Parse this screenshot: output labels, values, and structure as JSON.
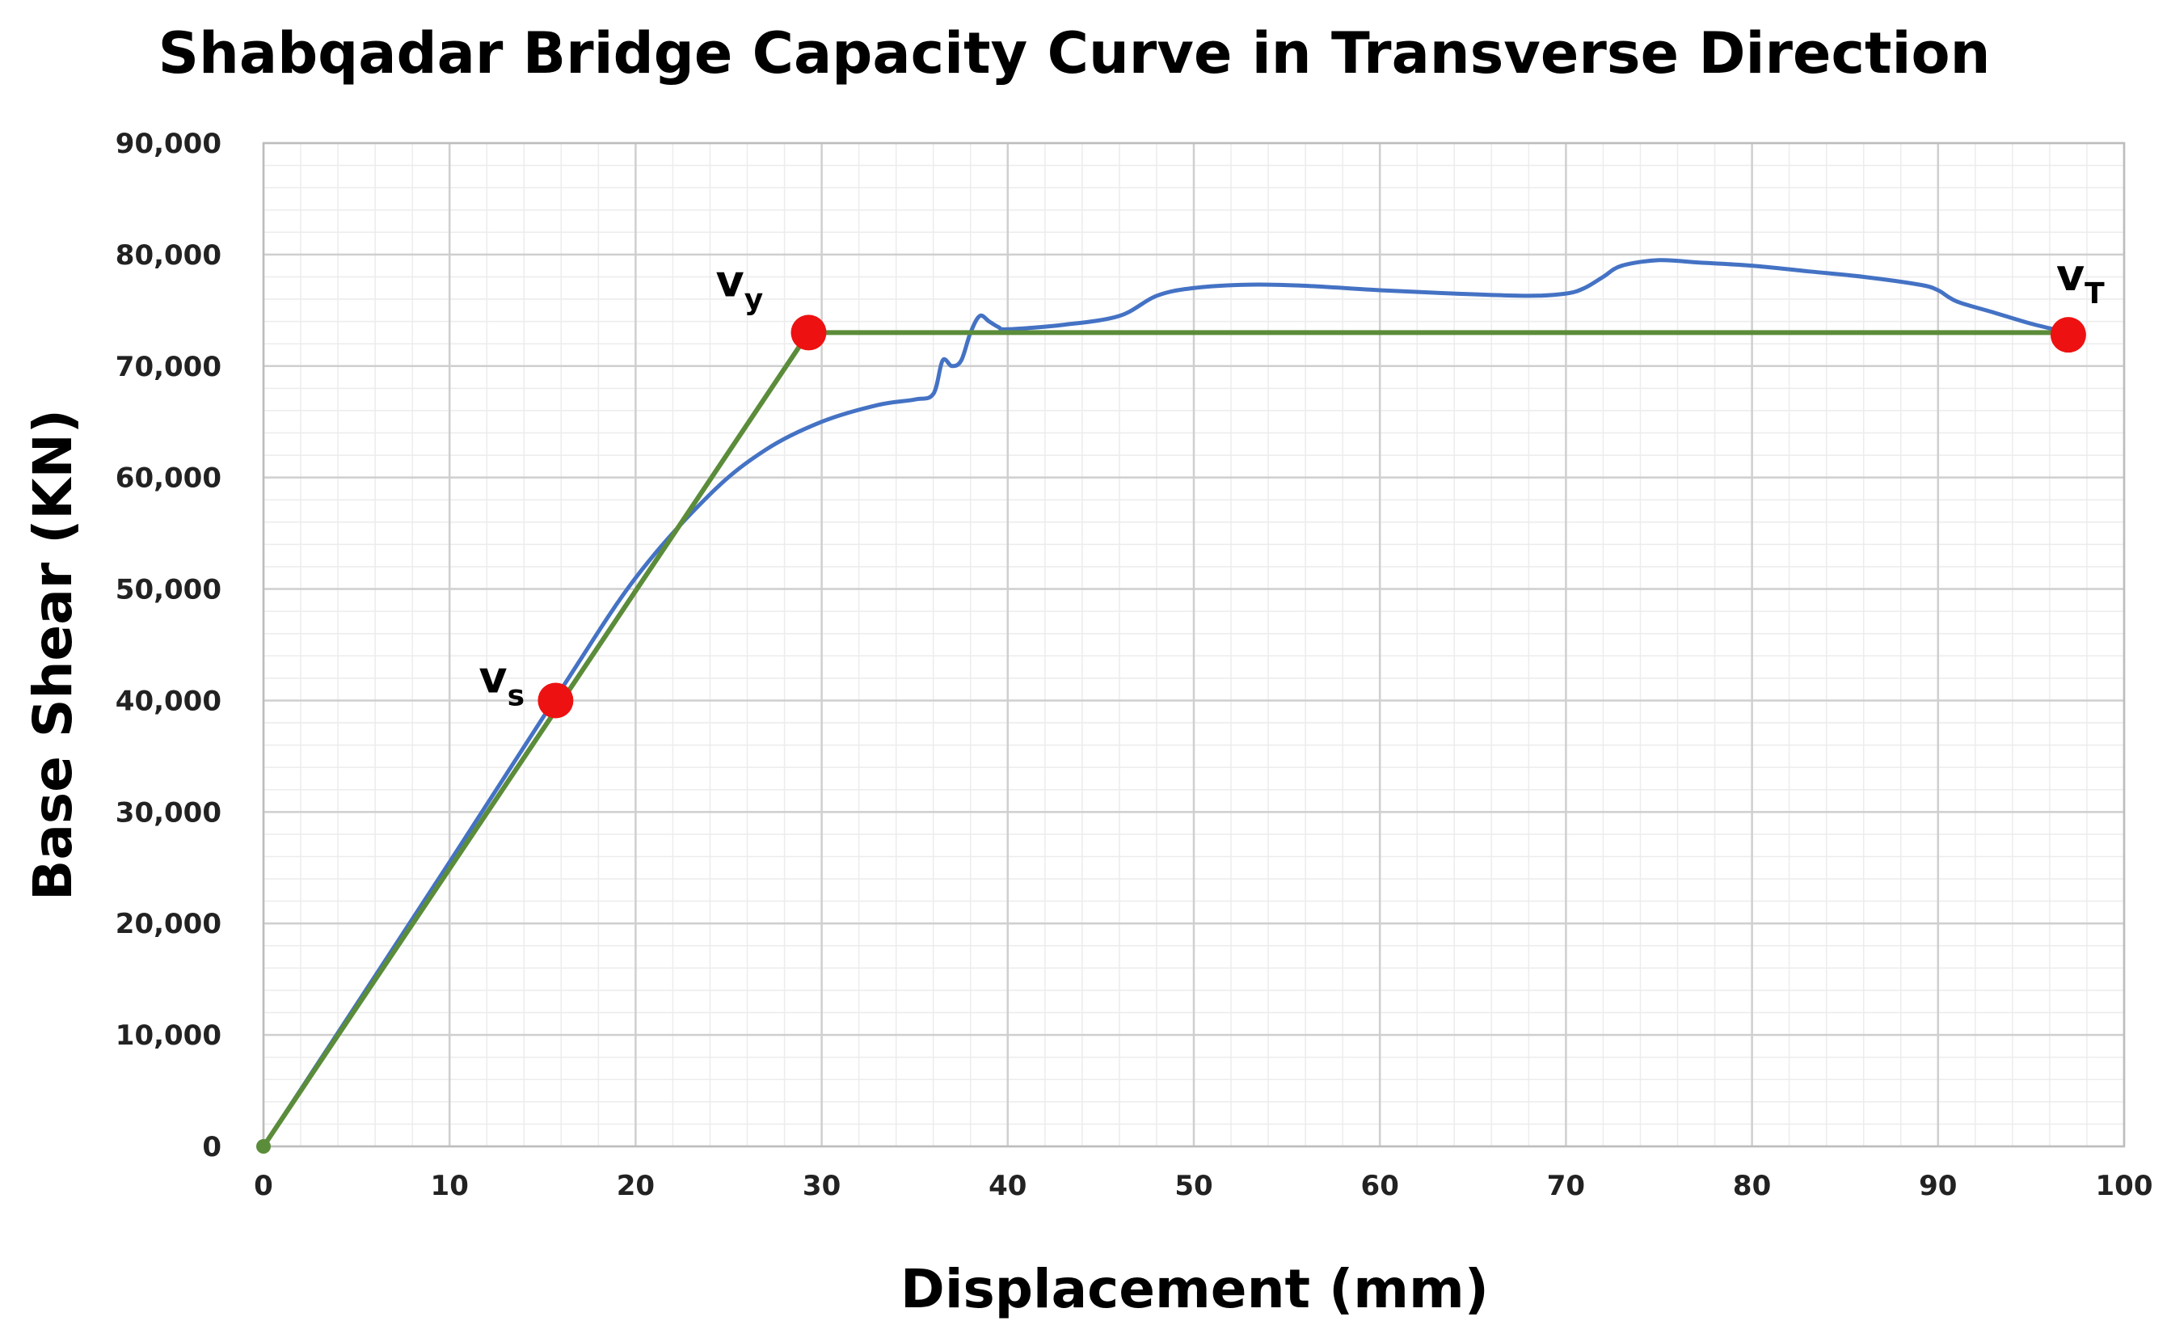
{
  "chart_data": {
    "type": "line",
    "title": "Shabqadar Bridge Capacity Curve in Transverse Direction",
    "xlabel": "Displacement (mm)",
    "ylabel": "Base Shear (KN)",
    "xlim": [
      0,
      100
    ],
    "ylim": [
      0,
      90000
    ],
    "x_ticks": [
      0,
      10,
      20,
      30,
      40,
      50,
      60,
      70,
      80,
      90,
      100
    ],
    "y_ticks": [
      0,
      10000,
      20000,
      30000,
      40000,
      50000,
      60000,
      70000,
      80000,
      90000
    ],
    "x_tick_labels": [
      "0",
      "10",
      "20",
      "30",
      "40",
      "50",
      "60",
      "70",
      "80",
      "90",
      "100"
    ],
    "y_tick_labels": [
      "0",
      "10,000",
      "20,000",
      "30,000",
      "40,000",
      "50,000",
      "60,000",
      "70,000",
      "80,000",
      "90,000"
    ],
    "grid": true,
    "minor_grid": true,
    "legend": "none",
    "series": [
      {
        "color": "#4472C4",
        "x": [
          0,
          10,
          16,
          20,
          24,
          27,
          30,
          33,
          35,
          36,
          36.5,
          37,
          37.5,
          38,
          38.5,
          39,
          39.5,
          40,
          43,
          46,
          48,
          50,
          53,
          56,
          60,
          64,
          68,
          70,
          71,
          72,
          73,
          75,
          77,
          80,
          83,
          86,
          89,
          90,
          91,
          93,
          95,
          97
        ],
        "y": [
          0,
          25500,
          41000,
          51000,
          58500,
          62500,
          65000,
          66500,
          67000,
          67500,
          70500,
          70000,
          70500,
          73000,
          74500,
          74000,
          73500,
          73300,
          73700,
          74500,
          76300,
          77000,
          77300,
          77200,
          76800,
          76500,
          76300,
          76500,
          77000,
          78000,
          79000,
          79500,
          79300,
          79000,
          78500,
          78000,
          77300,
          76800,
          75800,
          74800,
          73800,
          73000
        ]
      },
      {
        "color": "#5B8C3A",
        "x": [
          0,
          29.3,
          97
        ],
        "y": [
          0,
          73000,
          73000
        ]
      }
    ],
    "points": [
      {
        "label": "v",
        "sub": "s",
        "x": 15.7,
        "y": 40000,
        "color": "#EE1111"
      },
      {
        "label": "v",
        "sub": "y",
        "x": 29.3,
        "y": 73000,
        "color": "#EE1111"
      },
      {
        "label": "v",
        "sub": "T",
        "x": 97,
        "y": 72800,
        "color": "#EE1111"
      }
    ],
    "origin_marker_color": "#5B8C3A"
  }
}
